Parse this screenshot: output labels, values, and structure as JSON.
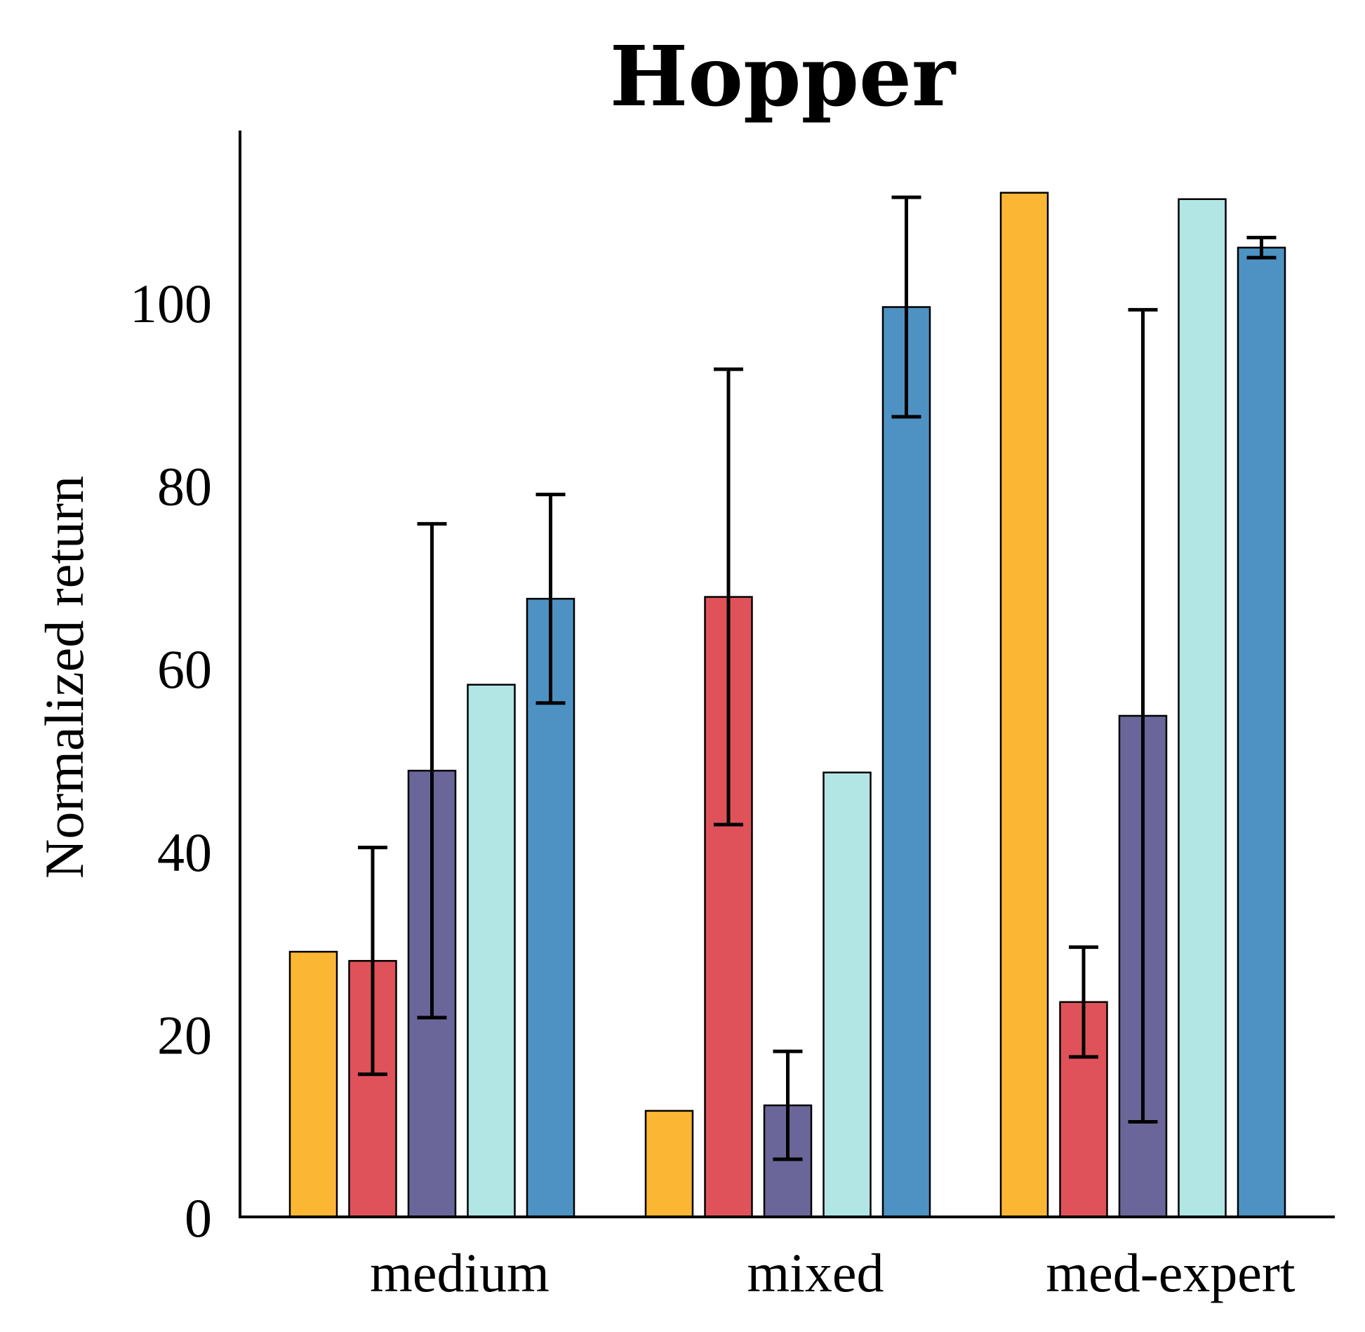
{
  "chart_data": {
    "type": "bar",
    "title": "Hopper",
    "ylabel": "Normalized return",
    "xlabel": "",
    "categories": [
      "medium",
      "mixed",
      "med-expert"
    ],
    "ylim": [
      0,
      118
    ],
    "yticks": [
      0,
      20,
      40,
      60,
      80,
      100
    ],
    "grid": false,
    "legend": "none",
    "series": [
      {
        "color": "#fbb733",
        "values": [
          29.0,
          11.6,
          112.0
        ],
        "errors": [
          null,
          null,
          null
        ]
      },
      {
        "color": "#e0525a",
        "values": [
          28.0,
          67.8,
          23.5
        ],
        "errors": [
          12.4,
          24.9,
          6.0
        ]
      },
      {
        "color": "#6b6699",
        "values": [
          48.8,
          12.2,
          54.8
        ],
        "errors": [
          27.0,
          5.9,
          44.4
        ]
      },
      {
        "color": "#b2e6e5",
        "values": [
          58.2,
          48.6,
          111.3
        ],
        "errors": [
          null,
          null,
          null
        ]
      },
      {
        "color": "#4d92c3",
        "values": [
          67.6,
          99.5,
          106.0
        ],
        "errors": [
          11.4,
          12.0,
          1.1
        ]
      }
    ]
  }
}
